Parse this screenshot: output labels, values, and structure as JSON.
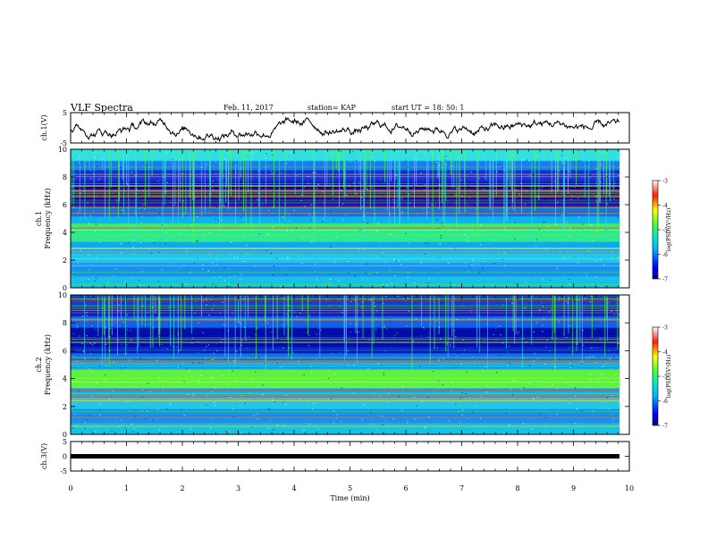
{
  "header": {
    "title": "VLF Spectra",
    "date": "Feb. 11, 2017",
    "station": "station= KAP",
    "start": "start  UT =   18: 50: 1"
  },
  "chart_data": [
    {
      "type": "line",
      "name": "ch1-waveform",
      "ylabel": "ch.1(V)",
      "ylim": [
        -5,
        5
      ],
      "yticks": [
        5,
        -5
      ],
      "xlim": [
        0,
        10
      ]
    },
    {
      "type": "heatmap",
      "name": "ch1-spectrogram",
      "ylabel_lines": [
        "ch.1",
        "Frequency (kHz)"
      ],
      "ylim": [
        0,
        10
      ],
      "yticks": [
        0,
        2,
        4,
        6,
        8,
        10
      ],
      "xlim": [
        0,
        10
      ],
      "colorbar": {
        "label": "log(PSD)(V²/Hz)",
        "range": [
          -7,
          -3
        ],
        "ticks": [
          "-3",
          "-4",
          "-5",
          "-6",
          "-7"
        ]
      }
    },
    {
      "type": "heatmap",
      "name": "ch2-spectrogram",
      "ylabel_lines": [
        "ch.2",
        "Frequency (kHz)"
      ],
      "ylim": [
        0,
        10
      ],
      "yticks": [
        0,
        2,
        4,
        6,
        8,
        10
      ],
      "xlim": [
        0,
        10
      ],
      "colorbar": {
        "label": "log(PSD)(V²/Hz)",
        "range": [
          -7,
          -3
        ],
        "ticks": [
          "-3",
          "-4",
          "-5",
          "-6",
          "-7"
        ]
      }
    },
    {
      "type": "line",
      "name": "ch3-waveform",
      "ylabel": "ch.3(V)",
      "ylim": [
        -5,
        5
      ],
      "yticks": [
        5,
        0,
        -5
      ],
      "xlim": [
        0,
        10
      ],
      "xlabel": "Time (min)",
      "xticks": [
        0,
        1,
        2,
        3,
        4,
        5,
        6,
        7,
        8,
        9,
        10
      ],
      "constant_value": 0
    }
  ]
}
